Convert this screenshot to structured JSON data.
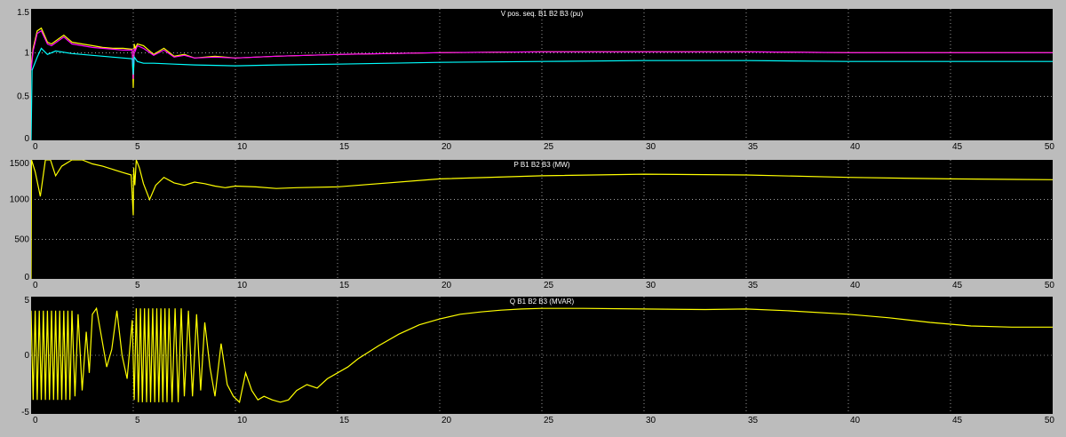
{
  "window": {
    "status_text": ""
  },
  "colors": {
    "background": "#000000",
    "frame": "#bcbcbc",
    "grid": "#ffffff",
    "title": "#ffffff",
    "tick_label": "#000000",
    "yellow": "#ffff00",
    "magenta": "#ff00ff",
    "cyan": "#00ffff"
  },
  "chart_data": [
    {
      "type": "line",
      "title": "V pos. seq. B1 B2 B3 (pu)",
      "xlabel": "",
      "ylabel": "",
      "xlim": [
        0,
        50
      ],
      "ylim": [
        0,
        1.5
      ],
      "x_ticks": [
        0,
        5,
        10,
        15,
        20,
        25,
        30,
        35,
        40,
        45,
        50
      ],
      "y_ticks": [
        0,
        0.5,
        1,
        1.5
      ],
      "y_tick_labels": [
        "0",
        "0.5",
        "1",
        "1.5"
      ],
      "grid": true,
      "series": [
        {
          "color": "#ffff00",
          "x": [
            0,
            0.1,
            0.3,
            0.5,
            0.8,
            1.0,
            1.3,
            1.6,
            2.0,
            2.5,
            3.0,
            3.5,
            4.0,
            4.5,
            4.95,
            5.0,
            5.05,
            5.1,
            5.2,
            5.5,
            6.0,
            6.5,
            7.0,
            7.5,
            8.0,
            9.0,
            10,
            12,
            15,
            20,
            25,
            30,
            35,
            40,
            45,
            50
          ],
          "y": [
            0.85,
            1.05,
            1.25,
            1.28,
            1.12,
            1.1,
            1.15,
            1.2,
            1.12,
            1.1,
            1.08,
            1.06,
            1.05,
            1.05,
            1.04,
            0.6,
            1.1,
            1.05,
            1.1,
            1.08,
            0.98,
            1.05,
            0.96,
            0.98,
            0.94,
            0.96,
            0.94,
            0.96,
            0.98,
            1.0,
            1.01,
            1.01,
            1.01,
            1.0,
            1.0,
            1.0
          ]
        },
        {
          "color": "#ff00ff",
          "x": [
            0,
            0.1,
            0.3,
            0.5,
            0.8,
            1.0,
            1.3,
            1.6,
            2.0,
            2.5,
            3.0,
            3.5,
            4.0,
            4.5,
            4.95,
            5.0,
            5.05,
            5.1,
            5.2,
            5.5,
            6.0,
            6.5,
            7.0,
            7.5,
            8.0,
            9.0,
            10,
            12,
            15,
            20,
            25,
            30,
            35,
            40,
            45,
            50
          ],
          "y": [
            0.8,
            1.02,
            1.22,
            1.25,
            1.1,
            1.08,
            1.13,
            1.18,
            1.1,
            1.08,
            1.06,
            1.05,
            1.04,
            1.03,
            1.03,
            0.7,
            1.05,
            1.02,
            1.08,
            1.05,
            0.97,
            1.03,
            0.95,
            0.97,
            0.94,
            0.95,
            0.94,
            0.96,
            0.98,
            1.0,
            1.01,
            1.01,
            1.01,
            1.0,
            1.0,
            1.0
          ]
        },
        {
          "color": "#00ffff",
          "x": [
            0,
            0.05,
            0.3,
            0.5,
            0.8,
            1.2,
            2.0,
            3.0,
            4.0,
            4.95,
            5.0,
            5.05,
            5.2,
            5.5,
            6.0,
            7.0,
            8.0,
            10,
            12,
            15,
            20,
            25,
            30,
            35,
            40,
            45,
            50
          ],
          "y": [
            0.0,
            0.8,
            0.95,
            1.05,
            0.98,
            1.02,
            0.99,
            0.97,
            0.95,
            0.93,
            0.75,
            0.95,
            0.9,
            0.88,
            0.88,
            0.87,
            0.86,
            0.85,
            0.86,
            0.87,
            0.89,
            0.9,
            0.91,
            0.91,
            0.9,
            0.9,
            0.9
          ]
        }
      ]
    },
    {
      "type": "line",
      "title": "P B1 B2 B3 (MW)",
      "xlabel": "",
      "ylabel": "",
      "xlim": [
        0,
        50
      ],
      "ylim": [
        0,
        1500
      ],
      "x_ticks": [
        0,
        5,
        10,
        15,
        20,
        25,
        30,
        35,
        40,
        45,
        50
      ],
      "y_ticks": [
        0,
        500,
        1000,
        1500
      ],
      "y_tick_labels": [
        "0",
        "500",
        "1000",
        "1500"
      ],
      "grid": true,
      "series": [
        {
          "color": "#ffff00",
          "x": [
            0,
            0.02,
            0.2,
            0.45,
            0.7,
            0.95,
            1.2,
            1.5,
            2.0,
            2.5,
            3.0,
            3.5,
            4.0,
            4.5,
            4.9,
            5.0,
            5.02,
            5.08,
            5.15,
            5.3,
            5.5,
            5.8,
            6.1,
            6.5,
            7.0,
            7.5,
            8.0,
            8.5,
            9.0,
            9.5,
            10,
            11,
            12,
            13,
            15,
            20,
            25,
            30,
            35,
            40,
            45,
            50
          ],
          "y": [
            0,
            1500,
            1350,
            1040,
            1500,
            1500,
            1300,
            1420,
            1500,
            1500,
            1450,
            1420,
            1380,
            1340,
            1310,
            800,
            1400,
            1180,
            1500,
            1400,
            1200,
            1000,
            1180,
            1280,
            1210,
            1180,
            1220,
            1200,
            1170,
            1150,
            1170,
            1160,
            1140,
            1150,
            1160,
            1260,
            1300,
            1320,
            1310,
            1280,
            1260,
            1250
          ]
        }
      ]
    },
    {
      "type": "line",
      "title": "Q B1 B2 B3 (MVAR)",
      "xlabel": "",
      "ylabel": "",
      "xlim": [
        0,
        50
      ],
      "ylim": [
        -5,
        5
      ],
      "x_ticks": [
        0,
        5,
        10,
        15,
        20,
        25,
        30,
        35,
        40,
        45,
        50
      ],
      "y_ticks": [
        -5,
        0,
        5
      ],
      "y_tick_labels": [
        "-5",
        "0",
        "5"
      ],
      "grid": true,
      "series": [
        {
          "color": "#ffff00",
          "x": [
            0,
            0.1,
            0.2,
            0.3,
            0.4,
            0.5,
            0.6,
            0.7,
            0.8,
            0.9,
            1.0,
            1.1,
            1.2,
            1.3,
            1.4,
            1.5,
            1.6,
            1.7,
            1.8,
            1.9,
            2.0,
            2.15,
            2.3,
            2.5,
            2.7,
            2.85,
            3.0,
            3.2,
            3.45,
            3.7,
            3.95,
            4.2,
            4.45,
            4.7,
            4.95,
            5.05,
            5.15,
            5.25,
            5.35,
            5.45,
            5.55,
            5.65,
            5.75,
            5.85,
            5.95,
            6.05,
            6.15,
            6.25,
            6.35,
            6.45,
            6.55,
            6.65,
            6.75,
            6.9,
            7.05,
            7.2,
            7.35,
            7.5,
            7.7,
            7.9,
            8.1,
            8.3,
            8.5,
            8.75,
            9.0,
            9.3,
            9.6,
            9.9,
            10.2,
            10.5,
            10.8,
            11.1,
            11.4,
            11.8,
            12.2,
            12.6,
            13.0,
            13.5,
            14.0,
            14.5,
            15,
            15.5,
            16,
            17,
            18,
            19,
            20,
            21,
            22,
            23,
            24,
            25,
            27,
            30,
            33,
            35,
            37,
            40,
            42,
            44,
            46,
            48,
            50
          ],
          "y": [
            3.8,
            -3.8,
            3.8,
            -3.8,
            3.8,
            -3.8,
            3.8,
            -3.8,
            3.8,
            -3.8,
            3.8,
            -3.8,
            3.8,
            -3.8,
            3.8,
            -3.8,
            3.8,
            -3.8,
            3.8,
            -3.8,
            3.8,
            -3.5,
            3.5,
            -3.0,
            2.0,
            -1.5,
            3.5,
            4.0,
            1.5,
            -1.0,
            0.5,
            3.8,
            0.0,
            -2.0,
            3.0,
            -3.8,
            4.0,
            -4.0,
            4.0,
            -4.0,
            4.0,
            -4.0,
            4.0,
            -4.0,
            4.0,
            -4.0,
            4.0,
            -4.0,
            4.0,
            -4.0,
            4.0,
            -4.0,
            4.0,
            -4.0,
            4.0,
            -4.0,
            4.0,
            -3.5,
            3.8,
            -3.5,
            3.5,
            -3.0,
            2.8,
            -1.0,
            -3.5,
            1.0,
            -2.5,
            -3.5,
            -4.0,
            -1.5,
            -3.0,
            -3.8,
            -3.5,
            -3.8,
            -4.0,
            -3.8,
            -3.0,
            -2.5,
            -2.8,
            -2.0,
            -1.5,
            -1.0,
            -0.3,
            0.8,
            1.8,
            2.6,
            3.1,
            3.5,
            3.7,
            3.85,
            3.95,
            4.0,
            4.0,
            3.95,
            3.9,
            3.95,
            3.8,
            3.5,
            3.2,
            2.8,
            2.5,
            2.4,
            2.4
          ]
        }
      ]
    }
  ]
}
